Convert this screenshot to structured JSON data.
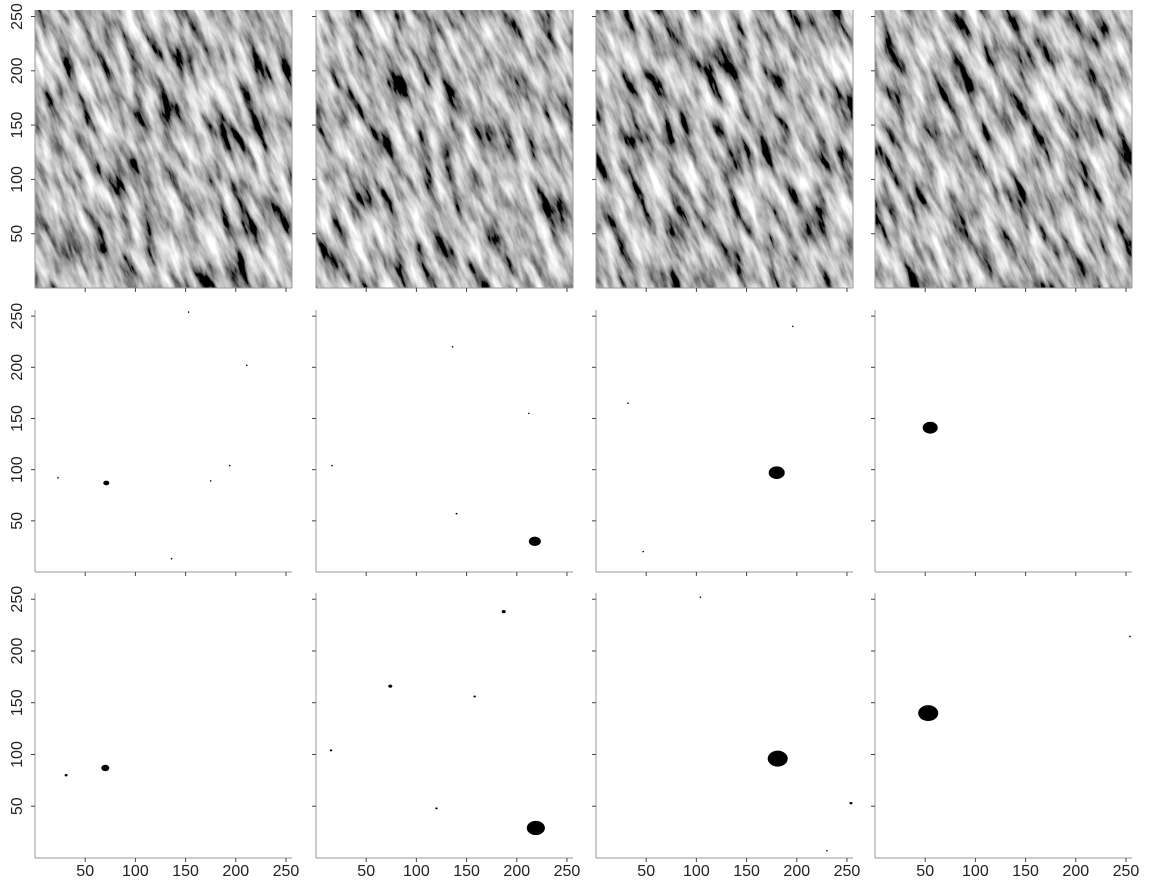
{
  "chart_data": [
    {
      "type": "image",
      "xlim": [
        0,
        256
      ],
      "ylim": [
        0,
        256
      ],
      "xticks": [
        50,
        100,
        150,
        200,
        250
      ],
      "yticks": [
        50,
        100,
        150,
        200,
        250
      ],
      "show_xtick_labels": false,
      "show_ytick_labels": true
    },
    {
      "type": "image",
      "xlim": [
        0,
        256
      ],
      "ylim": [
        0,
        256
      ],
      "xticks": [
        50,
        100,
        150,
        200,
        250
      ],
      "yticks": [
        50,
        100,
        150,
        200,
        250
      ],
      "show_xtick_labels": false,
      "show_ytick_labels": false
    },
    {
      "type": "image",
      "xlim": [
        0,
        256
      ],
      "ylim": [
        0,
        256
      ],
      "xticks": [
        50,
        100,
        150,
        200,
        250
      ],
      "yticks": [
        50,
        100,
        150,
        200,
        250
      ],
      "show_xtick_labels": false,
      "show_ytick_labels": false
    },
    {
      "type": "image",
      "xlim": [
        0,
        256
      ],
      "ylim": [
        0,
        256
      ],
      "xticks": [
        50,
        100,
        150,
        200,
        250
      ],
      "yticks": [
        50,
        100,
        150,
        200,
        250
      ],
      "show_xtick_labels": false,
      "show_ytick_labels": false
    },
    {
      "type": "scatter",
      "xlim": [
        0,
        256
      ],
      "ylim": [
        0,
        256
      ],
      "xticks": [
        50,
        100,
        150,
        200,
        250
      ],
      "yticks": [
        50,
        100,
        150,
        200,
        250
      ],
      "show_xtick_labels": false,
      "show_ytick_labels": true,
      "color": "#000000",
      "x": [
        71,
        23,
        153,
        211,
        194,
        175,
        136
      ],
      "y": [
        87,
        92,
        254,
        202,
        104,
        89,
        13
      ],
      "sizes": [
        6,
        1.5,
        1.5,
        1.5,
        1.5,
        1.5,
        1.5
      ]
    },
    {
      "type": "scatter",
      "xlim": [
        0,
        256
      ],
      "ylim": [
        0,
        256
      ],
      "xticks": [
        50,
        100,
        150,
        200,
        250
      ],
      "yticks": [
        50,
        100,
        150,
        200,
        250
      ],
      "show_xtick_labels": false,
      "show_ytick_labels": false,
      "color": "#000000",
      "x": [
        218,
        136,
        212,
        16,
        140
      ],
      "y": [
        30,
        220,
        155,
        104,
        57
      ],
      "sizes": [
        12,
        1.5,
        1.5,
        1.5,
        2
      ]
    },
    {
      "type": "scatter",
      "xlim": [
        0,
        256
      ],
      "ylim": [
        0,
        256
      ],
      "xticks": [
        50,
        100,
        150,
        200,
        250
      ],
      "yticks": [
        50,
        100,
        150,
        200,
        250
      ],
      "show_xtick_labels": false,
      "show_ytick_labels": false,
      "color": "#000000",
      "x": [
        180,
        196,
        32,
        47
      ],
      "y": [
        97,
        240,
        165,
        20
      ],
      "sizes": [
        16,
        1.5,
        1.5,
        1.5
      ]
    },
    {
      "type": "scatter",
      "xlim": [
        0,
        256
      ],
      "ylim": [
        0,
        256
      ],
      "xticks": [
        50,
        100,
        150,
        200,
        250
      ],
      "yticks": [
        50,
        100,
        150,
        200,
        250
      ],
      "show_xtick_labels": false,
      "show_ytick_labels": false,
      "color": "#000000",
      "x": [
        55
      ],
      "y": [
        141
      ],
      "sizes": [
        15
      ]
    },
    {
      "type": "scatter",
      "xlim": [
        0,
        256
      ],
      "ylim": [
        0,
        256
      ],
      "xticks": [
        50,
        100,
        150,
        200,
        250
      ],
      "yticks": [
        50,
        100,
        150,
        200,
        250
      ],
      "show_xtick_labels": true,
      "show_ytick_labels": true,
      "color": "#000000",
      "x": [
        70,
        31
      ],
      "y": [
        87,
        80
      ],
      "sizes": [
        8,
        3
      ]
    },
    {
      "type": "scatter",
      "xlim": [
        0,
        256
      ],
      "ylim": [
        0,
        256
      ],
      "xticks": [
        50,
        100,
        150,
        200,
        250
      ],
      "yticks": [
        50,
        100,
        150,
        200,
        250
      ],
      "show_xtick_labels": true,
      "show_ytick_labels": false,
      "color": "#000000",
      "x": [
        219,
        187,
        74,
        158,
        15,
        120
      ],
      "y": [
        29,
        238,
        166,
        156,
        104,
        48
      ],
      "sizes": [
        18,
        4,
        4,
        2.5,
        2.5,
        2.5
      ]
    },
    {
      "type": "scatter",
      "xlim": [
        0,
        256
      ],
      "ylim": [
        0,
        256
      ],
      "xticks": [
        50,
        100,
        150,
        200,
        250
      ],
      "yticks": [
        50,
        100,
        150,
        200,
        250
      ],
      "show_xtick_labels": true,
      "show_ytick_labels": false,
      "color": "#000000",
      "x": [
        181,
        104,
        254,
        230
      ],
      "y": [
        96,
        252,
        53,
        7
      ],
      "sizes": [
        20,
        1.5,
        3,
        1.5
      ]
    },
    {
      "type": "scatter",
      "xlim": [
        0,
        256
      ],
      "ylim": [
        0,
        256
      ],
      "xticks": [
        50,
        100,
        150,
        200,
        250
      ],
      "yticks": [
        50,
        100,
        150,
        200,
        250
      ],
      "show_xtick_labels": true,
      "show_ytick_labels": false,
      "color": "#000000",
      "x": [
        53,
        254
      ],
      "y": [
        140,
        214
      ],
      "sizes": [
        20,
        1.5
      ]
    }
  ]
}
